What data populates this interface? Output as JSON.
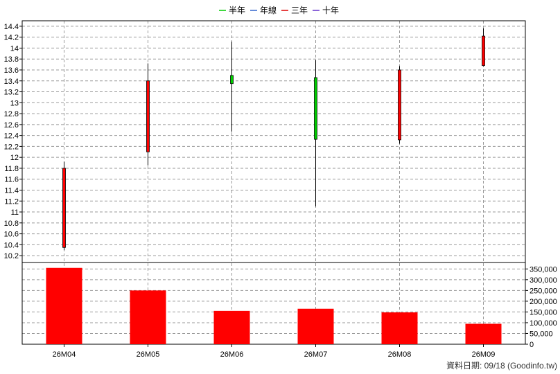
{
  "chart_data": {
    "type": "candlestick_volume",
    "categories": [
      "26M04",
      "26M05",
      "26M06",
      "26M07",
      "26M08",
      "26M09"
    ],
    "candles": [
      {
        "open": 10.35,
        "close": 11.8,
        "high": 11.92,
        "low": 10.3
      },
      {
        "open": 12.1,
        "close": 13.4,
        "high": 13.72,
        "low": 11.85
      },
      {
        "open": 13.5,
        "close": 13.35,
        "high": 14.12,
        "low": 12.47
      },
      {
        "open": 13.46,
        "close": 12.33,
        "high": 13.78,
        "low": 11.1
      },
      {
        "open": 12.32,
        "close": 13.6,
        "high": 13.67,
        "low": 12.25
      },
      {
        "open": 13.68,
        "close": 14.22,
        "high": 14.36,
        "low": 13.67
      }
    ],
    "volumes": [
      355000,
      250000,
      155000,
      165000,
      148000,
      95000
    ],
    "price_ticks": [
      10.2,
      10.4,
      10.6,
      10.8,
      11,
      11.2,
      11.4,
      11.6,
      11.8,
      12,
      12.2,
      12.4,
      12.6,
      12.8,
      13,
      13.2,
      13.4,
      13.6,
      13.8,
      14,
      14.2,
      14.4
    ],
    "price_tick_labels": [
      "10.2",
      "10.4",
      "10.6",
      "10.8",
      "11",
      "11.2",
      "11.4",
      "11.6",
      "11.8",
      "12",
      "12.2",
      "12.4",
      "12.6",
      "12.8",
      "13",
      "13.2",
      "13.4",
      "13.6",
      "13.8",
      "14",
      "14.2",
      "14.4"
    ],
    "volume_ticks": [
      0,
      50000,
      100000,
      150000,
      200000,
      250000,
      300000,
      350000
    ],
    "volume_tick_labels": [
      "0",
      "50,000",
      "100,000",
      "150,000",
      "200,000",
      "250,000",
      "300,000",
      "350,000"
    ],
    "legend": [
      {
        "name": "半年",
        "color": "#00cc00"
      },
      {
        "name": "年線",
        "color": "#3366cc"
      },
      {
        "name": "三年",
        "color": "#dd0000"
      },
      {
        "name": "十年",
        "color": "#6633cc"
      }
    ],
    "colors": {
      "up": "#ff0000",
      "down": "#00cc00",
      "volume": "#ff0000",
      "grid": "#999999"
    },
    "grid": true
  },
  "source_text": "資料日期: 09/18  (Goodinfo.tw)"
}
